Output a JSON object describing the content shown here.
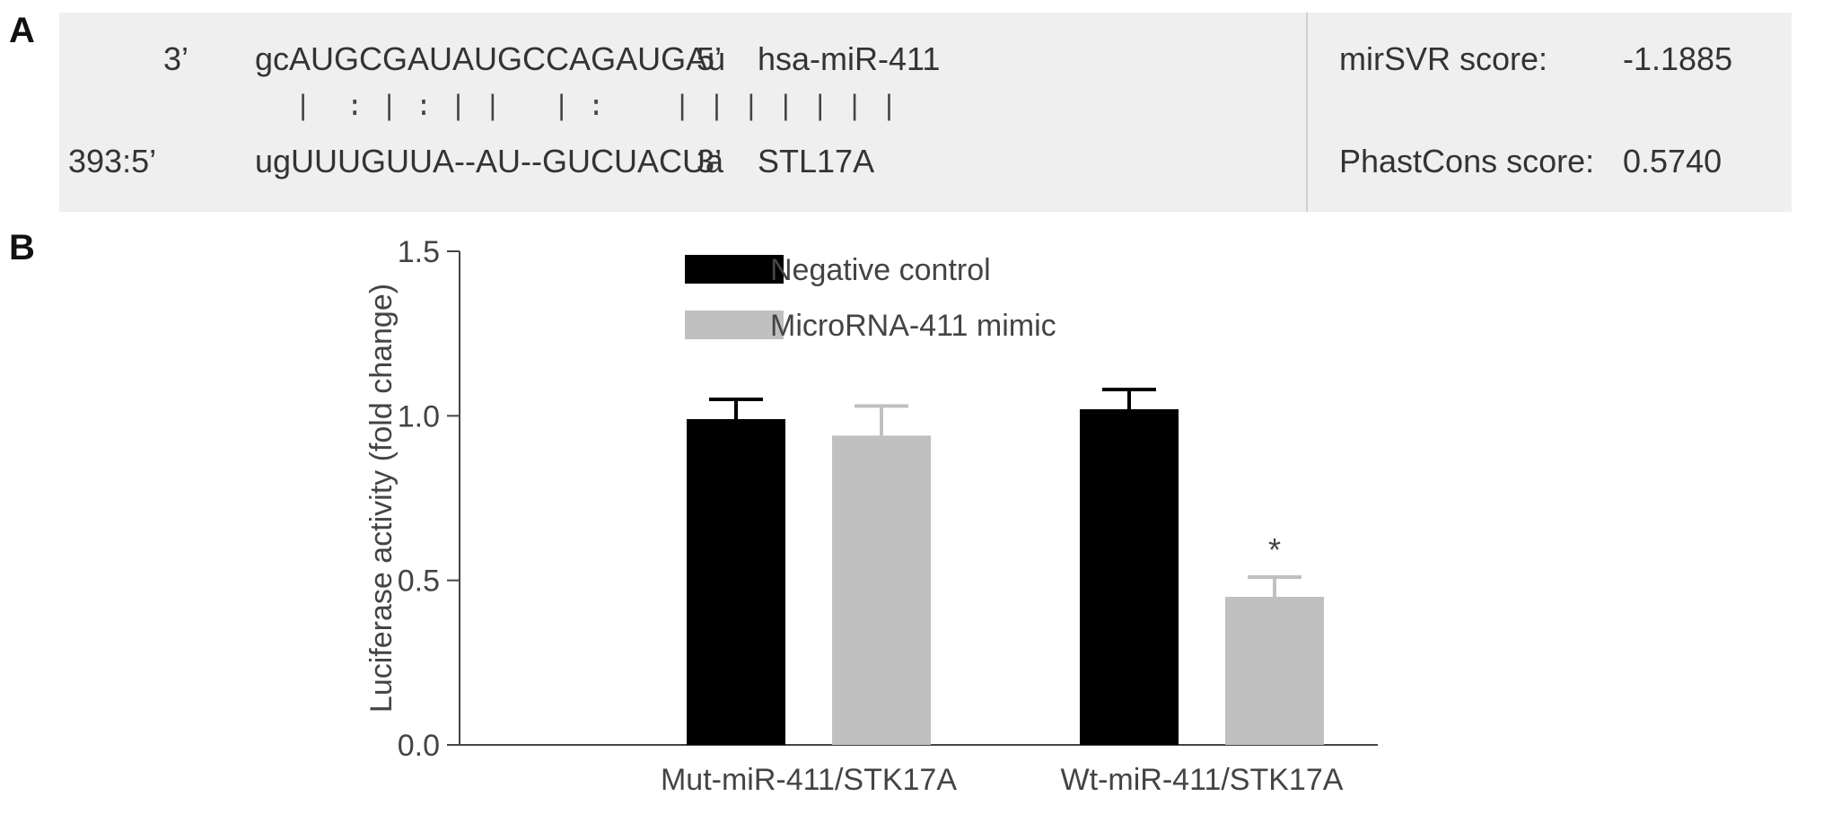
{
  "panels": {
    "a": "A",
    "b": "B"
  },
  "alignment": {
    "row1": {
      "end": "3’",
      "sequence": "gcAUGCGAUAUGCCAGAUGAu",
      "end2": "5’",
      "name": "hsa-miR-411"
    },
    "pairing": "|  : | : | |   | :    | | | | | | |",
    "row2": {
      "end": "393:5’",
      "sequence": "ugUUUGUUA--AU--GUCUACUa",
      "end2": "3’",
      "name": "STL17A"
    },
    "scores": [
      {
        "label": "mirSVR score:",
        "value": "-1.1885"
      },
      {
        "label": "PhastCons score:",
        "value": "0.5740"
      }
    ]
  },
  "chart_data": {
    "type": "bar",
    "categories": [
      "Mut-miR-411/STK17A",
      "Wt-miR-411/STK17A"
    ],
    "series": [
      {
        "name": "Negative control",
        "color": "#000000",
        "values": [
          0.99,
          1.02
        ],
        "errors": [
          0.06,
          0.06
        ]
      },
      {
        "name": "MicroRNA-411 mimic",
        "color": "#c0c0c0",
        "values": [
          0.94,
          0.45
        ],
        "errors": [
          0.09,
          0.06
        ]
      }
    ],
    "ylabel": "Luciferase activity (fold change)",
    "xlabel": "",
    "ylim": [
      0,
      1.5
    ],
    "yticks": [
      "0.0",
      "0.5",
      "1.0",
      "1.5"
    ],
    "annotations": [
      {
        "category": "Wt-miR-411/STK17A",
        "series": "MicroRNA-411 mimic",
        "text": "*"
      }
    ],
    "legend": "top-left",
    "grid": false
  }
}
